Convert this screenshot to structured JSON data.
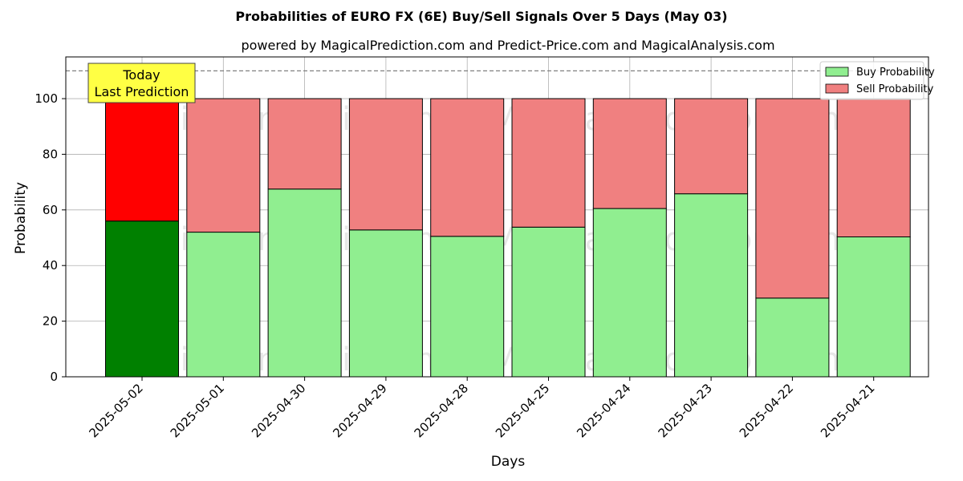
{
  "chart_data": {
    "type": "bar",
    "stacked": true,
    "title": "Probabilities of EURO FX (6E) Buy/Sell Signals Over 5 Days (May 03)",
    "subtitle": "powered by MagicalPrediction.com and Predict-Price.com and MagicalAnalysis.com",
    "xlabel": "Days",
    "ylabel": "Probability",
    "ylim": [
      0,
      115
    ],
    "yticks": [
      0,
      20,
      40,
      60,
      80,
      100
    ],
    "grid": true,
    "legend_position": "top-right",
    "categories": [
      "2025-05-02",
      "2025-05-01",
      "2025-04-30",
      "2025-04-29",
      "2025-04-28",
      "2025-04-25",
      "2025-04-24",
      "2025-04-23",
      "2025-04-22",
      "2025-04-21"
    ],
    "series": [
      {
        "name": "Buy Probability",
        "values": [
          56,
          52,
          67.5,
          52.8,
          50.5,
          53.8,
          60.5,
          65.8,
          28.3,
          50.3
        ],
        "color": "#90ee90",
        "highlight_color": "#008000"
      },
      {
        "name": "Sell Probability",
        "values": [
          44,
          48,
          32.5,
          47.2,
          49.5,
          46.2,
          39.5,
          34.2,
          71.7,
          49.7
        ],
        "color": "#f08080",
        "highlight_color": "#ff0000"
      }
    ],
    "reference_line": {
      "value": 110,
      "style": "dashed",
      "color": "#808080"
    },
    "annotation": {
      "lines": [
        "Today",
        "Last Prediction"
      ],
      "background": "#ffff44",
      "target_category": "2025-05-02"
    },
    "watermarks": [
      "MagicalAnalysis.com",
      "MagicalPrediction.com"
    ]
  }
}
